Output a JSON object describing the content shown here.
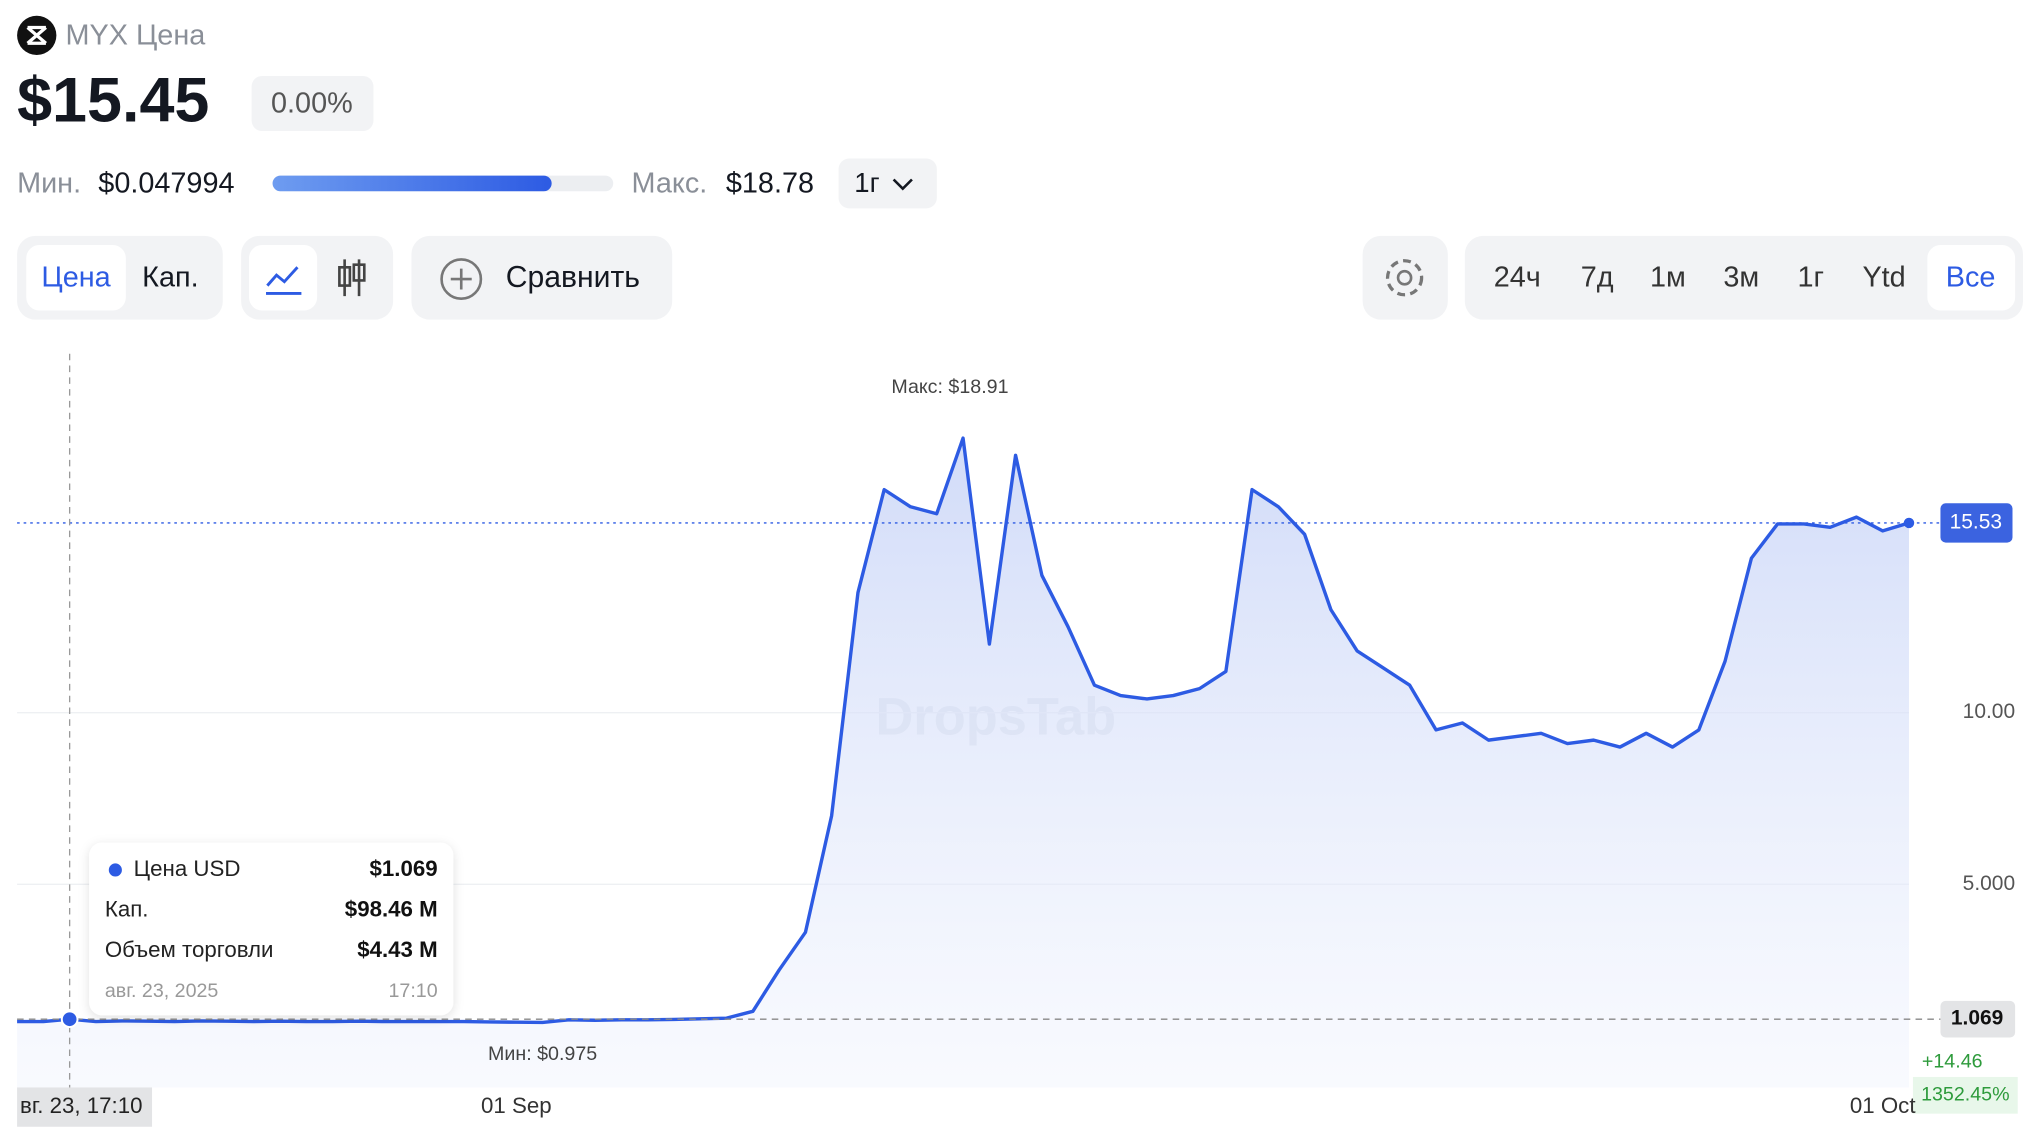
{
  "header": {
    "name": "MYX Цена",
    "price": "$15.45",
    "change": "0.00%",
    "min_label": "Мин.",
    "min_value": "$0.047994",
    "max_label": "Макс.",
    "max_value": "$18.78",
    "period": "1г"
  },
  "toolbar": {
    "price_tab": "Цена",
    "cap_tab": "Кап.",
    "compare": "Сравнить",
    "ranges": [
      "24ч",
      "7д",
      "1м",
      "3м",
      "1г",
      "Ytd",
      "Все"
    ]
  },
  "tooltip": {
    "series": "Цена USD",
    "price": "$1.069",
    "cap_label": "Кап.",
    "cap": "$98.46 M",
    "volume_label": "Объем торговли",
    "volume": "$4.43 M",
    "date": "авг. 23, 2025",
    "time": "17:10"
  },
  "chart_data": {
    "type": "line",
    "watermark": "DropsTab",
    "max_note": "Макс: $18.91",
    "min_note": "Мин: $0.975",
    "cursor_label": "вг. 23, 17:10",
    "change_abs": "+14.46",
    "change_pct": "1352.45%",
    "categories": [
      null,
      null,
      null,
      null,
      null,
      null,
      null,
      null,
      null,
      null,
      null,
      null,
      null,
      null,
      null,
      null,
      null,
      null,
      null,
      "01 Sep",
      null,
      null,
      null,
      null,
      null,
      null,
      null,
      null,
      null,
      null,
      null,
      null,
      null,
      null,
      null,
      null,
      null,
      null,
      null,
      null,
      null,
      null,
      null,
      null,
      null,
      null,
      null,
      null,
      null,
      null,
      null,
      null,
      null,
      null,
      null,
      null,
      null,
      null,
      null,
      null,
      null,
      null,
      null,
      null,
      null,
      null,
      null,
      null,
      null,
      null,
      null,
      "01 Oct",
      null
    ],
    "series": [
      {
        "name": "Цена USD",
        "color": "#2d5be3",
        "values": [
          1.0,
          1.0,
          1.07,
          1.0,
          1.02,
          1.01,
          1.0,
          1.02,
          1.01,
          1.0,
          1.01,
          1.0,
          1.0,
          1.01,
          1.0,
          1.0,
          1.0,
          1.0,
          0.99,
          0.98,
          0.975,
          1.05,
          1.04,
          1.05,
          1.05,
          1.06,
          1.08,
          1.1,
          1.3,
          2.5,
          3.6,
          7.0,
          13.5,
          16.5,
          16.0,
          15.8,
          18.0,
          12.0,
          17.5,
          14.0,
          12.5,
          10.8,
          10.5,
          10.4,
          10.5,
          10.7,
          11.2,
          16.5,
          16.0,
          15.2,
          13.0,
          11.8,
          11.3,
          10.8,
          9.5,
          9.7,
          9.2,
          9.3,
          9.4,
          9.1,
          9.2,
          9.0,
          9.4,
          9.0,
          9.5,
          11.5,
          14.5,
          15.5,
          15.5,
          15.4,
          15.7,
          15.3,
          15.53
        ]
      }
    ],
    "ylim": [
      -0.92,
      20.46
    ],
    "yticks": [
      {
        "value": 5,
        "label": "5.000"
      },
      {
        "value": 10,
        "label": "10.00"
      }
    ],
    "last_price": 15.53,
    "crosshair": 1.069,
    "crosshair_index": 2
  }
}
